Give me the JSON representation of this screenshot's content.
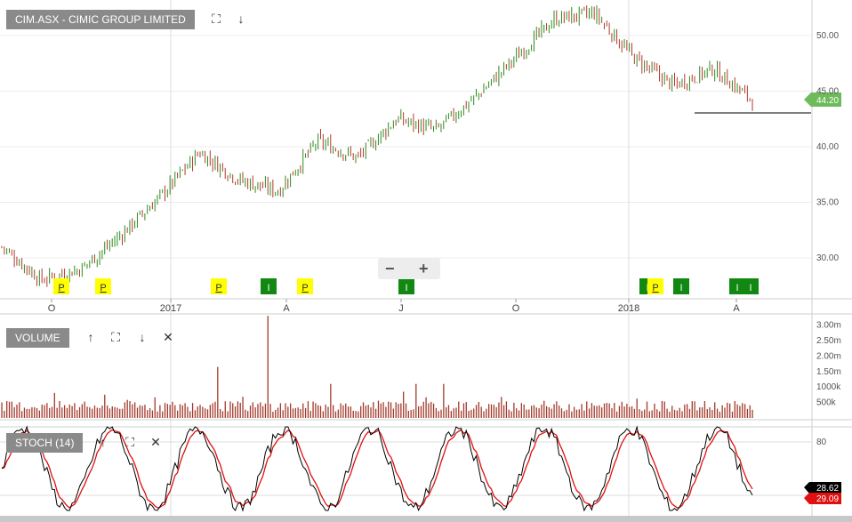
{
  "main_pane": {
    "title": "CIM.ASX - CIMIC GROUP LIMITED",
    "expand_icon": "expand-icon",
    "down_icon": "arrow-down-icon",
    "last_price": "44.20",
    "y_ticks": [
      "50.00",
      "45.00",
      "40.00",
      "35.00",
      "30.00"
    ],
    "x_ticks": [
      "O",
      "2017",
      "A",
      "J",
      "O",
      "2018",
      "A"
    ]
  },
  "volume_pane": {
    "title": "VOLUME",
    "y_ticks": [
      "3.00m",
      "2.50m",
      "2.00m",
      "1.50m",
      "1000k",
      "500k"
    ]
  },
  "stoch_pane": {
    "title": "STOCH (14)",
    "y_ticks": [
      "80"
    ],
    "last_k": "28.62",
    "last_d": "29.09"
  },
  "markers": [
    {
      "label": "P",
      "type": "P"
    },
    {
      "label": "P",
      "type": "P"
    },
    {
      "label": "P",
      "type": "P"
    },
    {
      "label": "I",
      "type": "I"
    },
    {
      "label": "P",
      "type": "P"
    },
    {
      "label": "I",
      "type": "I"
    },
    {
      "label": "I",
      "type": "I"
    },
    {
      "label": "P",
      "type": "P"
    },
    {
      "label": "I",
      "type": "I"
    },
    {
      "label": "I",
      "type": "I"
    },
    {
      "label": "I",
      "type": "I"
    }
  ],
  "colors": {
    "up": "#2e8b1e",
    "down": "#b23a2b",
    "volume": "#a33a2c",
    "stoch_k": "#000000",
    "stoch_d": "#e01010",
    "price_tag": "#6dbb5b",
    "marker_p": "#ffff00",
    "marker_i": "#118811"
  },
  "chart_data": {
    "type": "candlestick",
    "title": "CIM.ASX - CIMIC GROUP LIMITED",
    "x_ticks": [
      "O",
      "2017",
      "A",
      "J",
      "O",
      "2018",
      "A"
    ],
    "ylim": [
      26.5,
      53
    ],
    "price_series": {
      "name": "CIM.ASX",
      "x": [
        "2016-09",
        "2016-10",
        "2016-11",
        "2016-12",
        "2017-01",
        "2017-02",
        "2017-03",
        "2017-04",
        "2017-05",
        "2017-06",
        "2017-07",
        "2017-08",
        "2017-09",
        "2017-10",
        "2017-11",
        "2017-12",
        "2018-01",
        "2018-02",
        "2018-03",
        "2018-04"
      ],
      "close": [
        31.0,
        28.0,
        29.0,
        32.0,
        35.5,
        39.5,
        37.0,
        36.0,
        40.5,
        39.0,
        42.5,
        41.5,
        44.5,
        48.0,
        51.5,
        52.0,
        48.0,
        45.5,
        47.0,
        44.2
      ]
    },
    "last_price": 44.2,
    "support_line": 43.0,
    "volume": {
      "name": "VOLUME",
      "ticks": [
        "3.00m",
        "2.50m",
        "2.00m",
        "1.50m",
        "1000k",
        "500k"
      ],
      "peak": "3.00m"
    },
    "stoch": {
      "name": "STOCH (14)",
      "ticks": [
        "80"
      ],
      "k_last": 28.62,
      "d_last": 29.09
    }
  }
}
